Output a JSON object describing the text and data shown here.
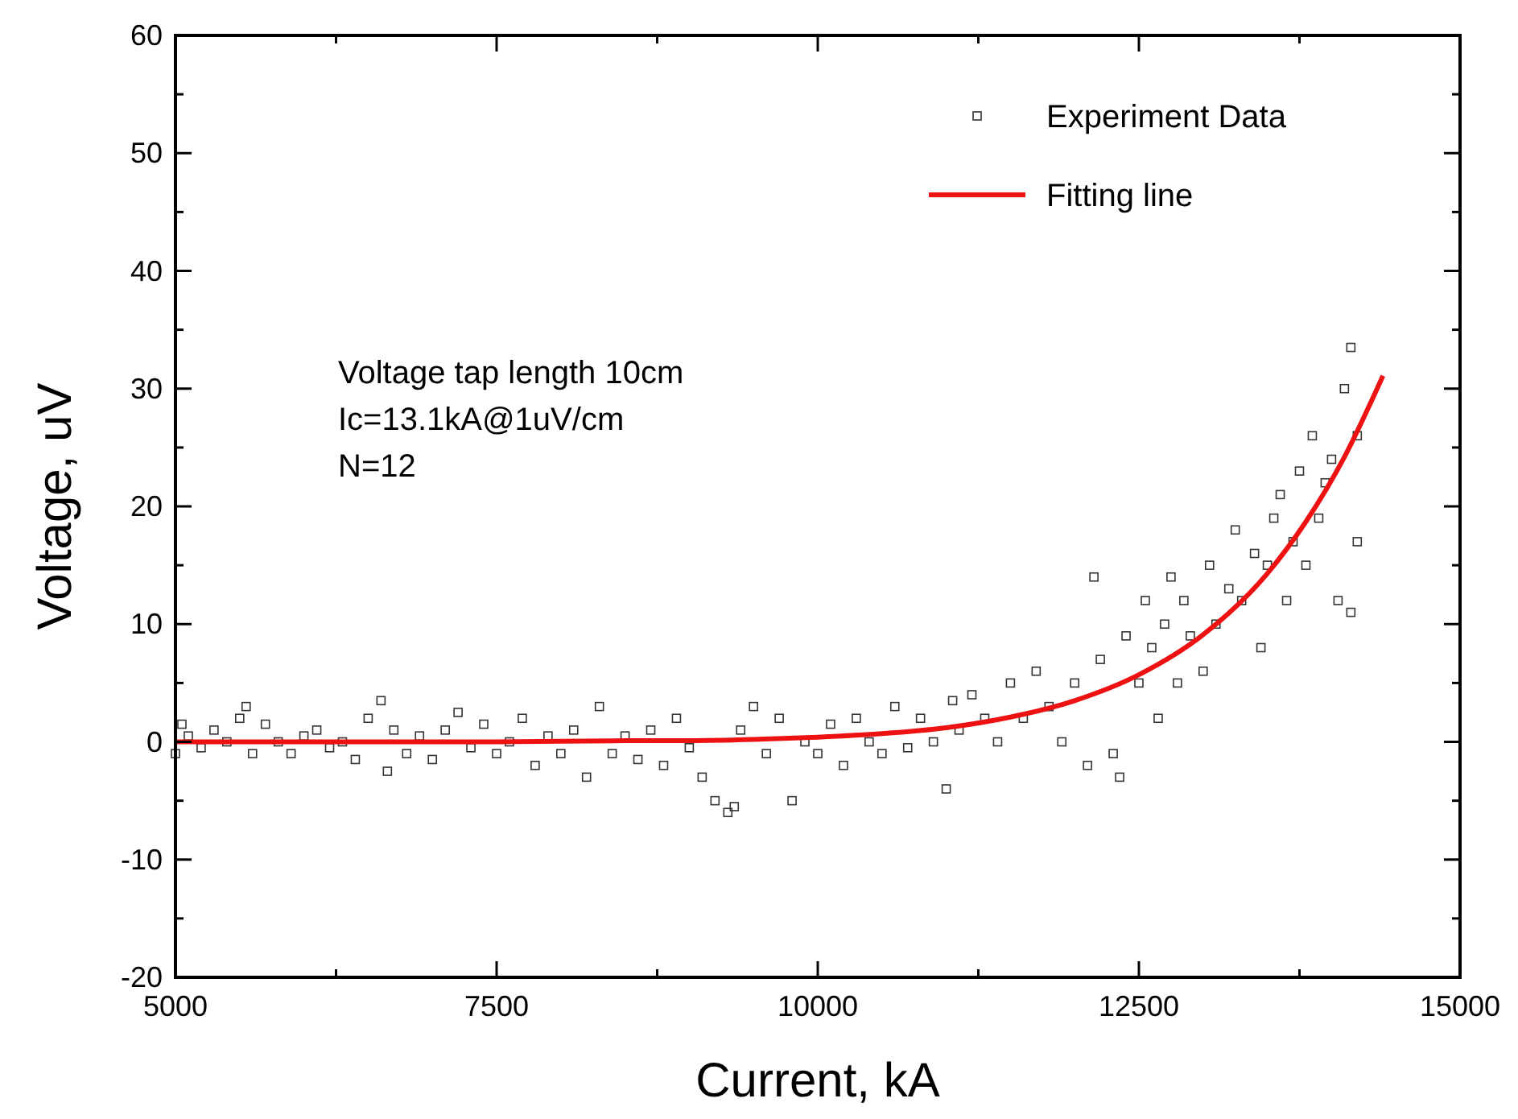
{
  "chart_data": {
    "type": "scatter",
    "xlabel": "Current, kA",
    "ylabel": "Voltage, uV",
    "xlim": [
      5000,
      15000
    ],
    "ylim": [
      -20,
      60
    ],
    "xticks": [
      5000,
      {
        "value": 6250,
        "label": null
      },
      7500,
      {
        "value": 8750,
        "label": null
      },
      10000,
      {
        "value": 11250,
        "label": null
      },
      12500,
      {
        "value": 13750,
        "label": null
      },
      15000
    ],
    "yticks": [
      -20,
      {
        "value": -15,
        "label": null
      },
      -10,
      {
        "value": -5,
        "label": null
      },
      0,
      {
        "value": 5,
        "label": null
      },
      10,
      {
        "value": 15,
        "label": null
      },
      20,
      {
        "value": 25,
        "label": null
      },
      30,
      {
        "value": 35,
        "label": null
      },
      40,
      {
        "value": 45,
        "label": null
      },
      50,
      {
        "value": 55,
        "label": null
      },
      60
    ],
    "grid": false,
    "legend": "top right",
    "annotations": [
      "Voltage tap length 10cm",
      "Ic=13.1kA@1uV/cm",
      "N=12"
    ],
    "series": [
      {
        "name": "Experiment Data",
        "marker": "square",
        "color": "#333333",
        "x": [
          5000,
          5050,
          5100,
          5200,
          5300,
          5400,
          5500,
          5550,
          5600,
          5700,
          5800,
          5900,
          6000,
          6100,
          6200,
          6300,
          6400,
          6500,
          6600,
          6650,
          6700,
          6800,
          6900,
          7000,
          7100,
          7200,
          7300,
          7400,
          7500,
          7600,
          7700,
          7800,
          7900,
          8000,
          8100,
          8200,
          8300,
          8400,
          8500,
          8600,
          8700,
          8800,
          8900,
          9000,
          9100,
          9200,
          9300,
          9350,
          9400,
          9500,
          9600,
          9700,
          9800,
          9900,
          10000,
          10100,
          10200,
          10300,
          10400,
          10500,
          10600,
          10700,
          10800,
          10900,
          11000,
          11050,
          11100,
          11200,
          11300,
          11400,
          11500,
          11600,
          11700,
          11800,
          11900,
          12000,
          12100,
          12150,
          12200,
          12300,
          12350,
          12400,
          12500,
          12550,
          12600,
          12650,
          12700,
          12750,
          12800,
          12850,
          12900,
          13000,
          13050,
          13100,
          13200,
          13250,
          13300,
          13400,
          13450,
          13500,
          13550,
          13600,
          13650,
          13700,
          13750,
          13800,
          13850,
          13900,
          13950,
          14000,
          14050,
          14100,
          14150,
          14150,
          14200,
          14200
        ],
        "values": [
          -1,
          1.5,
          0.5,
          -0.5,
          1,
          0,
          2,
          3,
          -1,
          1.5,
          0,
          -1,
          0.5,
          1,
          -0.5,
          0,
          -1.5,
          2,
          3.5,
          -2.5,
          1,
          -1,
          0.5,
          -1.5,
          1,
          2.5,
          -0.5,
          1.5,
          -1,
          0,
          2,
          -2,
          0.5,
          -1,
          1,
          -3,
          3,
          -1,
          0.5,
          -1.5,
          1,
          -2,
          2,
          -0.5,
          -3,
          -5,
          -6,
          -5.5,
          1,
          3,
          -1,
          2,
          -5,
          0,
          -1,
          1.5,
          -2,
          2,
          0,
          -1,
          3,
          -0.5,
          2,
          0,
          -4,
          3.5,
          1,
          4,
          2,
          0,
          5,
          2,
          6,
          3,
          0,
          5,
          -2,
          14,
          7,
          -1,
          -3,
          9,
          5,
          12,
          8,
          2,
          10,
          14,
          5,
          12,
          9,
          6,
          15,
          10,
          13,
          18,
          12,
          16,
          8,
          15,
          19,
          21,
          12,
          17,
          23,
          15,
          26,
          19,
          22,
          24,
          12,
          30,
          33.5,
          11,
          17,
          26
        ]
      },
      {
        "name": "Fitting line",
        "type": "line",
        "marker": "none",
        "line_style": "solid",
        "color": "#ee1111",
        "x": [
          5000,
          7500,
          8500,
          9000,
          9500,
          10000,
          10500,
          11000,
          11500,
          12000,
          12500,
          13000,
          13500,
          13800,
          14100,
          14400
        ],
        "values": [
          0,
          0,
          0.1,
          0.1,
          0.2,
          0.4,
          0.7,
          1.2,
          2.1,
          3.5,
          5.7,
          9.1,
          14.3,
          18.7,
          24.2,
          31.1
        ]
      }
    ]
  }
}
